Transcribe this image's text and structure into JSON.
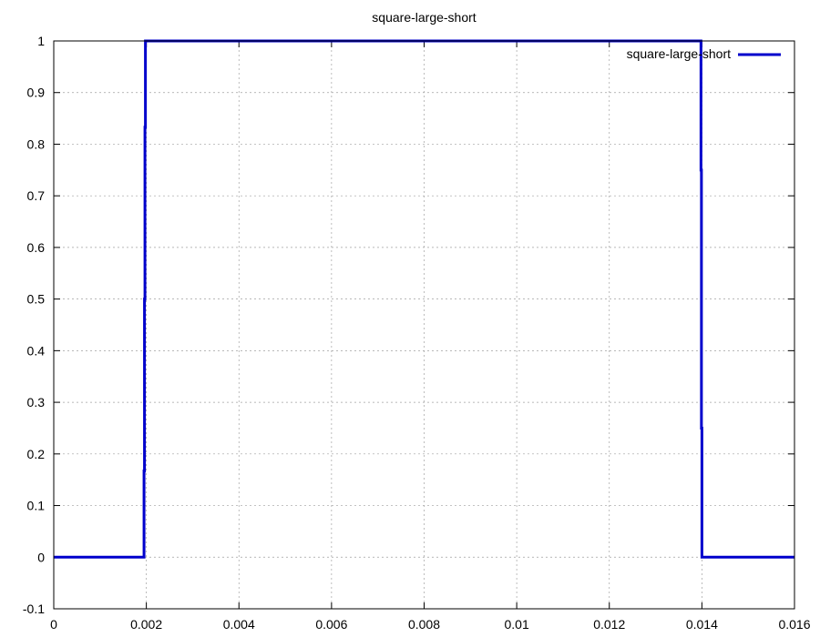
{
  "chart_data": {
    "type": "line",
    "title": "square-large-short",
    "xlabel": "",
    "ylabel": "",
    "xlim": [
      0,
      0.016
    ],
    "ylim": [
      -0.1,
      1
    ],
    "x_ticks": [
      "0",
      "0.002",
      "0.004",
      "0.006",
      "0.008",
      "0.01",
      "0.012",
      "0.014",
      "0.016"
    ],
    "y_ticks": [
      "-0.1",
      "0",
      "0.1",
      "0.2",
      "0.3",
      "0.4",
      "0.5",
      "0.6",
      "0.7",
      "0.8",
      "0.9",
      "1"
    ],
    "grid": true,
    "legend_position": "top-right",
    "series": [
      {
        "name": "square-large-short",
        "color": "#0000cc",
        "points": [
          [
            0,
            0
          ],
          [
            0.00195,
            0
          ],
          [
            0.00195,
            0.167
          ],
          [
            0.00196,
            0.167
          ],
          [
            0.00196,
            0.5
          ],
          [
            0.00197,
            0.5
          ],
          [
            0.00197,
            0.833
          ],
          [
            0.00198,
            0.833
          ],
          [
            0.00198,
            1
          ],
          [
            0.01398,
            1
          ],
          [
            0.01398,
            0.75
          ],
          [
            0.01399,
            0.75
          ],
          [
            0.01399,
            0.25
          ],
          [
            0.014,
            0.25
          ],
          [
            0.014,
            0
          ],
          [
            0.016,
            0
          ]
        ]
      }
    ]
  }
}
